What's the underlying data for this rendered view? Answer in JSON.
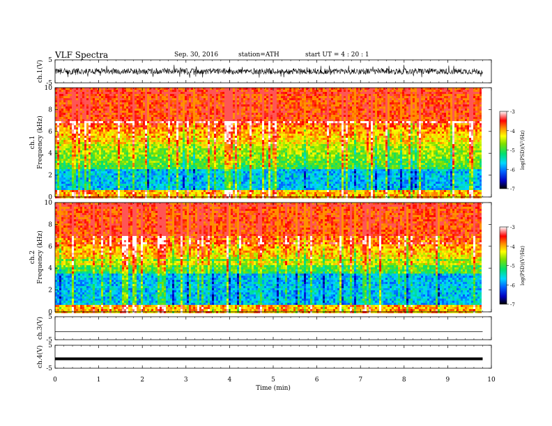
{
  "header": {
    "title": "VLF Spectra",
    "date": "Sep. 30, 2016",
    "station": "station=ATH",
    "start": "start UT = 4 : 20 : 1"
  },
  "chart_data": [
    {
      "type": "line",
      "panel": "ch1-waveform",
      "ylabel": "ch.1(V)",
      "ylim": [
        -5,
        5
      ],
      "yticks": [
        "5",
        "-5"
      ],
      "xlim": [
        0,
        10
      ],
      "signal": "noisy waveform, amplitude about ±1.5 V with spikes to ±3 V"
    },
    {
      "type": "heatmap",
      "panel": "ch1-spectrogram",
      "ylabel_top": "ch.1",
      "ylabel": "Frequency (kHz)",
      "ylim": [
        0,
        10
      ],
      "yticks": [
        "0",
        "2",
        "4",
        "6",
        "8",
        "10"
      ],
      "xlim": [
        0,
        10
      ],
      "x_data_end": 9.8,
      "colorbar": {
        "label": "log(PSD)(V²/Hz)",
        "range": [
          -7,
          -3
        ],
        "ticks": [
          "-3",
          "-4",
          "-5",
          "-6",
          "-7"
        ]
      }
    },
    {
      "type": "heatmap",
      "panel": "ch2-spectrogram",
      "ylabel_top": "ch.2",
      "ylabel": "Frequency (kHz)",
      "ylim": [
        0,
        10
      ],
      "yticks": [
        "0",
        "2",
        "4",
        "6",
        "8",
        "10"
      ],
      "xlim": [
        0,
        10
      ],
      "x_data_end": 9.8,
      "colorbar": {
        "label": "log(PSD)(V²/Hz)",
        "range": [
          -7,
          -3
        ],
        "ticks": [
          "-3",
          "-4",
          "-5",
          "-6",
          "-7"
        ]
      }
    },
    {
      "type": "line",
      "panel": "ch3-waveform",
      "ylabel": "ch.3(V)",
      "ylim": [
        -5,
        5
      ],
      "yticks": [
        "5",
        "-5"
      ],
      "xlim": [
        0,
        10
      ],
      "signal": "flat line near 0 V"
    },
    {
      "type": "line",
      "panel": "ch4-waveform",
      "ylabel": "ch.4(V)",
      "ylim": [
        -5,
        5
      ],
      "yticks": [
        "5",
        "-5"
      ],
      "xlim": [
        0,
        10
      ],
      "xlabel": "Time (min)",
      "xticks": [
        "0",
        "1",
        "2",
        "3",
        "4",
        "5",
        "6",
        "7",
        "8",
        "9",
        "10"
      ],
      "signal": "thick flat line near 0 V"
    }
  ]
}
